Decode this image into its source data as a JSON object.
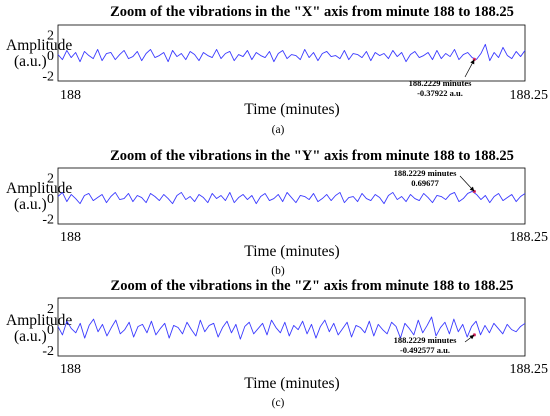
{
  "chart_data": [
    {
      "type": "line",
      "panel_label": "(a)",
      "title": "Zoom of the vibrations in the \"X\" axis from minute 188 to 188.25",
      "xlabel": "Time (minutes)",
      "ylabel": "Amplitude (a.u.)",
      "ylabel_lines": [
        "Amplitude",
        "(a.u.)"
      ],
      "x_tick_labels": [
        "188",
        "188.25"
      ],
      "y_ticks": [
        2,
        0,
        -2
      ],
      "xlim": [
        188,
        188.25
      ],
      "ylim": [
        -2.5,
        3
      ],
      "grid": false,
      "series_color": "#3b3bff",
      "highlight_color": "#e0306a",
      "annotation": {
        "x": 188.2229,
        "y": -0.37922,
        "text_lines": [
          "188.2229 minutes",
          "-0.37922 a.u."
        ]
      },
      "y_values": [
        0.1,
        -0.4,
        0.5,
        -0.2,
        0.3,
        -0.6,
        0.4,
        0.0,
        -0.3,
        0.6,
        -0.5,
        0.2,
        0.3,
        -0.4,
        0.1,
        0.5,
        -0.3,
        -0.1,
        0.4,
        -0.5,
        0.2,
        0.6,
        -0.2,
        0.0,
        0.3,
        -0.6,
        0.5,
        -0.1,
        0.2,
        -0.4,
        0.4,
        0.1,
        -0.5,
        0.3,
        0.0,
        -0.2,
        0.6,
        -0.3,
        0.2,
        0.4,
        -0.5,
        0.1,
        -0.1,
        0.5,
        -0.4,
        0.3,
        0.0,
        -0.2,
        0.4,
        -0.6,
        0.2,
        0.5,
        -0.3,
        0.1,
        0.0,
        -0.4,
        0.6,
        -0.2,
        0.3,
        -0.5,
        0.2,
        0.4,
        -0.1,
        0.0,
        -0.3,
        0.5,
        -0.4,
        0.2,
        0.1,
        -0.2,
        0.4,
        -0.5,
        0.3,
        0.0,
        0.2,
        -0.3,
        0.5,
        -0.1,
        0.3,
        -0.6,
        0.1,
        0.4,
        -0.2,
        0.0,
        0.3,
        -0.4,
        0.5,
        -0.3,
        0.2,
        -0.1,
        0.6,
        -0.4,
        0.1,
        0.3,
        -0.2,
        -0.38,
        0.2,
        1.1,
        -0.5,
        0.3,
        -0.2,
        0.8,
        0.0,
        -0.3,
        0.4,
        -0.1,
        0.5
      ]
    },
    {
      "type": "line",
      "panel_label": "(b)",
      "title": "Zoom of the vibrations in the \"Y\" axis from minute 188 to 188.25",
      "xlabel": "Time (minutes)",
      "ylabel": "Amplitude (a.u.)",
      "ylabel_lines": [
        "Amplitude",
        "(a.u.)"
      ],
      "x_tick_labels": [
        "188",
        "188.25"
      ],
      "y_ticks": [
        2,
        0,
        -2
      ],
      "xlim": [
        188,
        188.25
      ],
      "ylim": [
        -2.5,
        3
      ],
      "grid": false,
      "series_color": "#3b3bff",
      "highlight_color": "#e0306a",
      "annotation": {
        "x": 188.2229,
        "y": 0.69677,
        "text_lines": [
          "188.2229 minutes",
          "0.69677"
        ]
      },
      "y_values": [
        0.2,
        0.6,
        -0.3,
        0.4,
        0.0,
        -0.5,
        0.3,
        0.5,
        -0.2,
        0.1,
        0.4,
        -0.4,
        0.2,
        0.6,
        -0.1,
        0.0,
        0.5,
        -0.3,
        0.3,
        0.1,
        -0.4,
        0.5,
        0.2,
        -0.2,
        0.4,
        0.0,
        -0.5,
        0.3,
        0.6,
        -0.1,
        0.2,
        -0.3,
        0.4,
        0.1,
        -0.4,
        0.5,
        0.0,
        0.3,
        -0.2,
        0.6,
        -0.4,
        0.1,
        0.4,
        -0.1,
        0.3,
        -0.5,
        0.2,
        0.5,
        -0.2,
        0.0,
        0.4,
        -0.3,
        0.6,
        0.1,
        -0.4,
        0.3,
        0.2,
        -0.1,
        0.5,
        -0.3,
        0.0,
        0.4,
        -0.2,
        0.3,
        0.6,
        -0.4,
        0.1,
        0.2,
        -0.3,
        0.5,
        0.0,
        -0.2,
        0.4,
        0.1,
        -0.5,
        0.3,
        0.6,
        -0.1,
        0.2,
        -0.3,
        0.4,
        0.0,
        -0.2,
        0.5,
        0.1,
        -0.4,
        0.3,
        0.2,
        -0.1,
        0.4,
        0.6,
        -0.3,
        0.0,
        0.5,
        0.7,
        0.4,
        -0.1,
        0.3,
        -0.4,
        0.2,
        0.5,
        -0.2,
        0.1,
        0.4,
        -0.3,
        0.2,
        0.5
      ]
    },
    {
      "type": "line",
      "panel_label": "(c)",
      "title": "Zoom of the vibrations in the \"Z\" axis from minute 188 to 188.25",
      "xlabel": "Time (minutes)",
      "ylabel": "Amplitude (a.u.)",
      "ylabel_lines": [
        "Amplitude",
        "(a.u.)"
      ],
      "x_tick_labels": [
        "188",
        "188.25"
      ],
      "y_ticks": [
        2,
        0,
        -2
      ],
      "xlim": [
        188,
        188.25
      ],
      "ylim": [
        -2.5,
        3
      ],
      "grid": false,
      "series_color": "#3b3bff",
      "highlight_color": "#e0306a",
      "annotation": {
        "x": 188.2229,
        "y": -0.492577,
        "text_lines": [
          "188.2229 minutes",
          "-0.492577 a.u."
        ]
      },
      "y_values": [
        0.3,
        -0.5,
        0.8,
        0.1,
        -0.3,
        0.6,
        -0.8,
        0.4,
        1.0,
        -0.2,
        0.5,
        -0.6,
        0.2,
        0.9,
        -0.4,
        0.0,
        0.7,
        -0.7,
        0.3,
        0.5,
        -0.3,
        0.8,
        -0.5,
        0.1,
        0.6,
        -0.8,
        0.4,
        0.2,
        -0.4,
        0.7,
        0.0,
        -0.6,
        0.9,
        -0.2,
        0.4,
        0.6,
        -0.7,
        0.2,
        0.8,
        -0.3,
        0.5,
        -0.9,
        0.3,
        0.7,
        -0.4,
        0.1,
        0.6,
        -0.5,
        0.9,
        0.2,
        -0.3,
        0.7,
        -0.6,
        0.4,
        0.0,
        0.8,
        -0.4,
        0.5,
        -0.8,
        0.3,
        0.9,
        -0.2,
        0.6,
        -0.5,
        0.1,
        0.7,
        -0.7,
        0.4,
        0.2,
        -0.3,
        0.8,
        -0.6,
        0.5,
        0.0,
        -0.4,
        0.7,
        0.3,
        -0.8,
        0.6,
        0.1,
        -0.5,
        0.9,
        -0.3,
        0.4,
        1.2,
        -0.6,
        0.2,
        0.7,
        -0.4,
        1.0,
        -0.2,
        0.5,
        -0.7,
        0.3,
        0.8,
        -0.49,
        0.4,
        -0.3,
        0.6,
        0.1,
        -0.4,
        0.5,
        0.0,
        -0.2,
        0.3,
        0.6
      ]
    }
  ]
}
